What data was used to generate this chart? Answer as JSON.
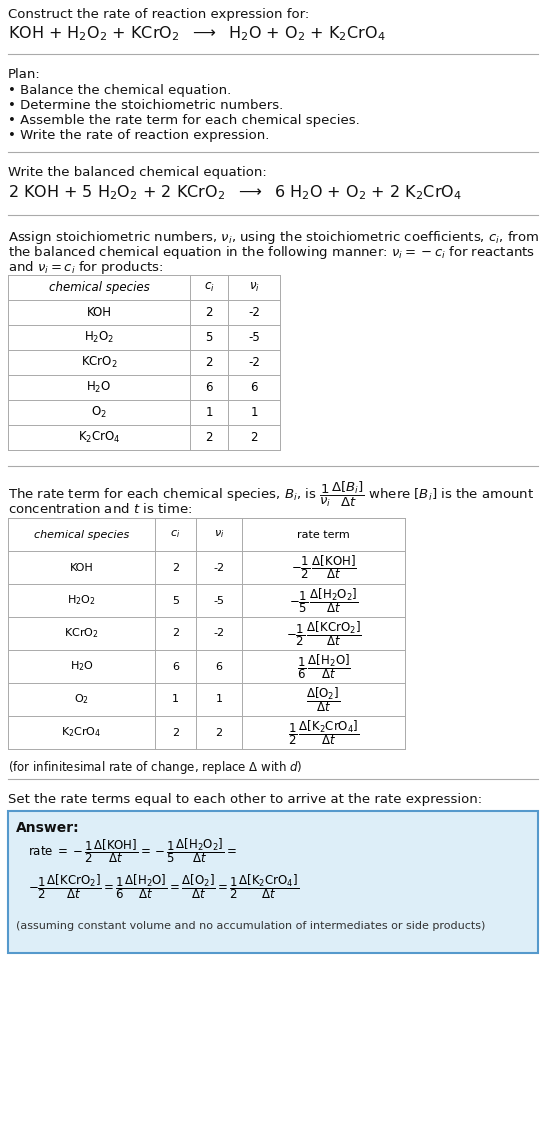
{
  "bg_color": "#ffffff",
  "title_line1": "Construct the rate of reaction expression for:",
  "reaction_unbalanced_parts": [
    "KOH + H",
    "2",
    "O",
    "2",
    " + KCrO",
    "2",
    " ⟶ H",
    "2",
    "O + O",
    "2",
    " + K",
    "2",
    "CrO",
    "4"
  ],
  "plan_header": "Plan:",
  "plan_items": [
    "• Balance the chemical equation.",
    "• Determine the stoichiometric numbers.",
    "• Assemble the rate term for each chemical species.",
    "• Write the rate of reaction expression."
  ],
  "balanced_header": "Write the balanced chemical equation:",
  "stoich_text1": "Assign stoichiometric numbers, ",
  "stoich_text2": "the balanced chemical equation in the following manner: ",
  "stoich_text3": "and ",
  "table1_rows": [
    [
      "KOH",
      "2",
      "-2"
    ],
    [
      "H$_2$O$_2$",
      "5",
      "-5"
    ],
    [
      "KCrO$_2$",
      "2",
      "-2"
    ],
    [
      "H$_2$O",
      "6",
      "6"
    ],
    [
      "O$_2$",
      "1",
      "1"
    ],
    [
      "K$_2$CrO$_4$",
      "2",
      "2"
    ]
  ],
  "rate_text1": "The rate term for each chemical species, B",
  "rate_text2": "concentration and ",
  "table2_rows": [
    [
      "KOH",
      "2",
      "-2"
    ],
    [
      "H$_2$O$_2$",
      "5",
      "-5"
    ],
    [
      "KCrO$_2$",
      "2",
      "-2"
    ],
    [
      "H$_2$O",
      "6",
      "6"
    ],
    [
      "O$_2$",
      "1",
      "1"
    ],
    [
      "K$_2$CrO$_4$",
      "2",
      "2"
    ]
  ],
  "infinitesimal_note": "(for infinitesimal rate of change, replace Δ with ",
  "set_rate_header": "Set the rate terms equal to each other to arrive at the rate expression:",
  "answer_box_color": "#ddeef8",
  "answer_border_color": "#5599cc",
  "answer_label": "Answer:",
  "answer_note": "(assuming constant volume and no accumulation of intermediates or side products)"
}
